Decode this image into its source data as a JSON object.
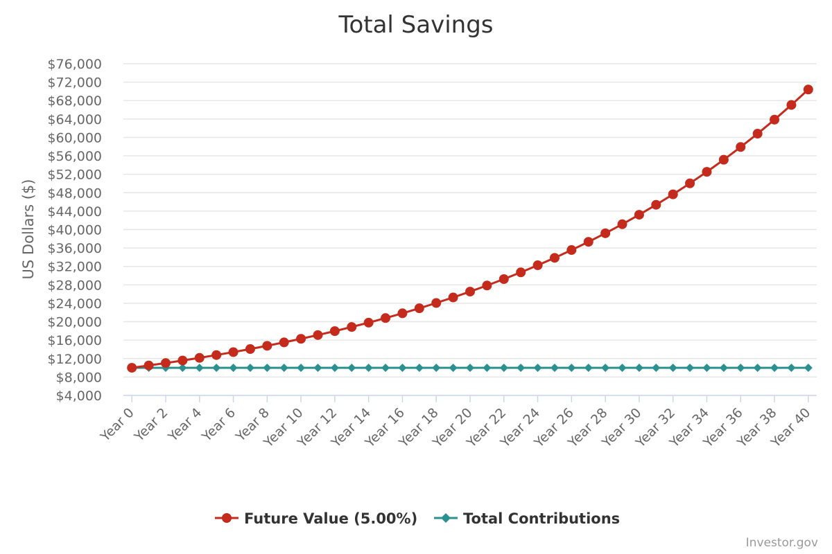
{
  "chart_data": {
    "type": "line",
    "title": "Total Savings",
    "ylabel": "US Dollars ($)",
    "xlabel": "",
    "ylim": [
      4000,
      76000
    ],
    "ytick_step": 4000,
    "y_tick_labels": [
      "$4,000",
      "$8,000",
      "$12,000",
      "$16,000",
      "$20,000",
      "$24,000",
      "$28,000",
      "$32,000",
      "$36,000",
      "$40,000",
      "$44,000",
      "$48,000",
      "$52,000",
      "$56,000",
      "$60,000",
      "$64,000",
      "$68,000",
      "$72,000",
      "$76,000"
    ],
    "x": [
      "Year 0",
      "Year 1",
      "Year 2",
      "Year 3",
      "Year 4",
      "Year 5",
      "Year 6",
      "Year 7",
      "Year 8",
      "Year 9",
      "Year 10",
      "Year 11",
      "Year 12",
      "Year 13",
      "Year 14",
      "Year 15",
      "Year 16",
      "Year 17",
      "Year 18",
      "Year 19",
      "Year 20",
      "Year 21",
      "Year 22",
      "Year 23",
      "Year 24",
      "Year 25",
      "Year 26",
      "Year 27",
      "Year 28",
      "Year 29",
      "Year 30",
      "Year 31",
      "Year 32",
      "Year 33",
      "Year 34",
      "Year 35",
      "Year 36",
      "Year 37",
      "Year 38",
      "Year 39",
      "Year 40"
    ],
    "x_tick_labels": [
      "Year 0",
      "Year 2",
      "Year 4",
      "Year 6",
      "Year 8",
      "Year 10",
      "Year 12",
      "Year 14",
      "Year 16",
      "Year 18",
      "Year 20",
      "Year 22",
      "Year 24",
      "Year 26",
      "Year 28",
      "Year 30",
      "Year 32",
      "Year 34",
      "Year 36",
      "Year 38",
      "Year 40"
    ],
    "grid": true,
    "legend_position": "bottom-center",
    "series": [
      {
        "name": "Future Value (5.00%)",
        "color": "#c42b1c",
        "marker": "circle",
        "values": [
          10000,
          10500,
          11025,
          11576,
          12155,
          12763,
          13401,
          14071,
          14775,
          15513,
          16289,
          17103,
          17959,
          18856,
          19799,
          20789,
          21829,
          22920,
          24066,
          25270,
          26533,
          27860,
          29253,
          30715,
          32251,
          33864,
          35557,
          37335,
          39201,
          41161,
          43219,
          45380,
          47649,
          50032,
          52533,
          55160,
          57918,
          60814,
          63855,
          67048,
          70400
        ]
      },
      {
        "name": "Total Contributions",
        "color": "#2a9090",
        "marker": "diamond",
        "values": [
          10000,
          10000,
          10000,
          10000,
          10000,
          10000,
          10000,
          10000,
          10000,
          10000,
          10000,
          10000,
          10000,
          10000,
          10000,
          10000,
          10000,
          10000,
          10000,
          10000,
          10000,
          10000,
          10000,
          10000,
          10000,
          10000,
          10000,
          10000,
          10000,
          10000,
          10000,
          10000,
          10000,
          10000,
          10000,
          10000,
          10000,
          10000,
          10000,
          10000,
          10000
        ]
      }
    ]
  },
  "credit": "Investor.gov"
}
